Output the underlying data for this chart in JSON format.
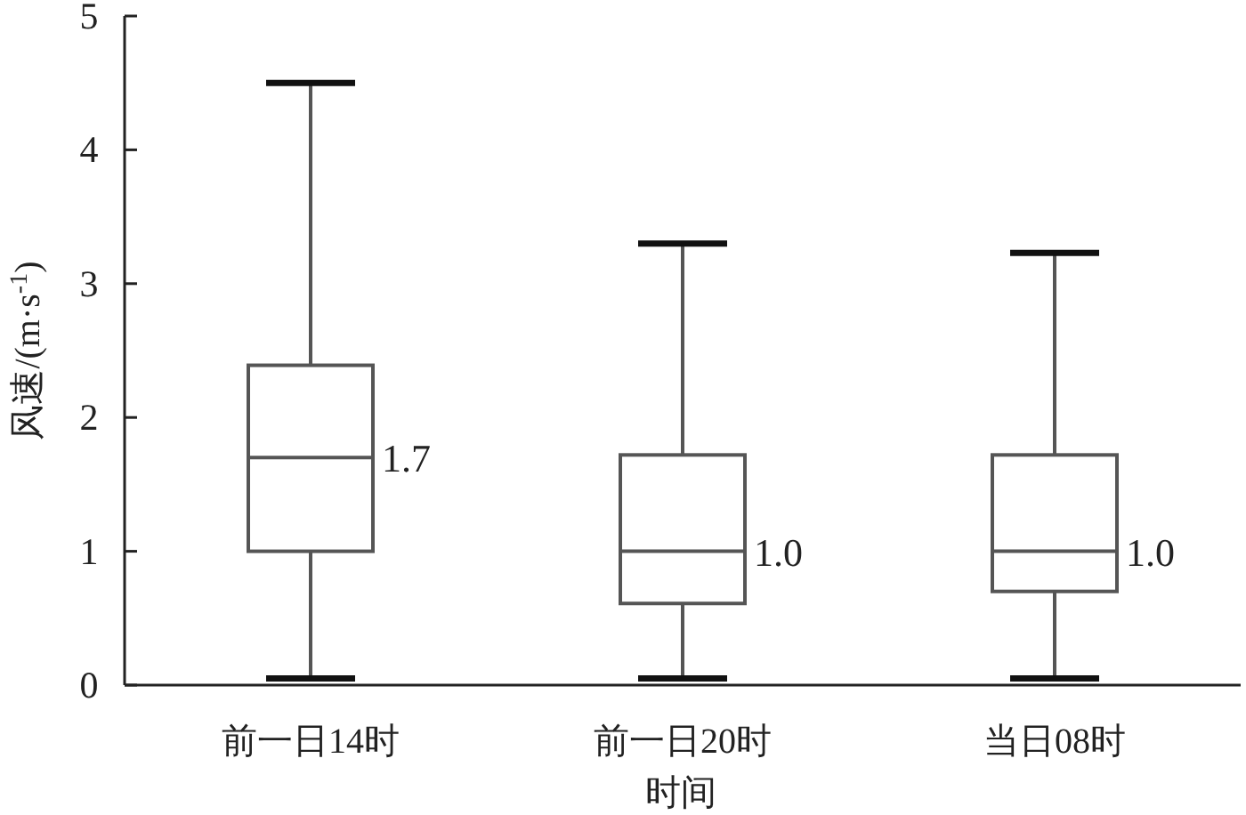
{
  "chart_data": {
    "type": "box",
    "categories": [
      "前一日14时",
      "前一日20时",
      "当日08时"
    ],
    "boxes": [
      {
        "low": 0.05,
        "q1": 1.0,
        "median": 1.7,
        "q3": 2.39,
        "high": 4.5
      },
      {
        "low": 0.05,
        "q1": 0.61,
        "median": 1.0,
        "q3": 1.72,
        "high": 3.3
      },
      {
        "low": 0.05,
        "q1": 0.7,
        "median": 1.0,
        "q3": 1.72,
        "high": 3.23
      }
    ],
    "value_labels": [
      "1.7",
      "1.0",
      "1.0"
    ],
    "color": "#555555",
    "xlabel": "时间",
    "ylabel": "风速/(m·s$^{-1}$)",
    "ylim": [
      0,
      5
    ],
    "yticks": [
      0,
      1,
      2,
      3,
      4,
      5
    ],
    "grid": false
  }
}
